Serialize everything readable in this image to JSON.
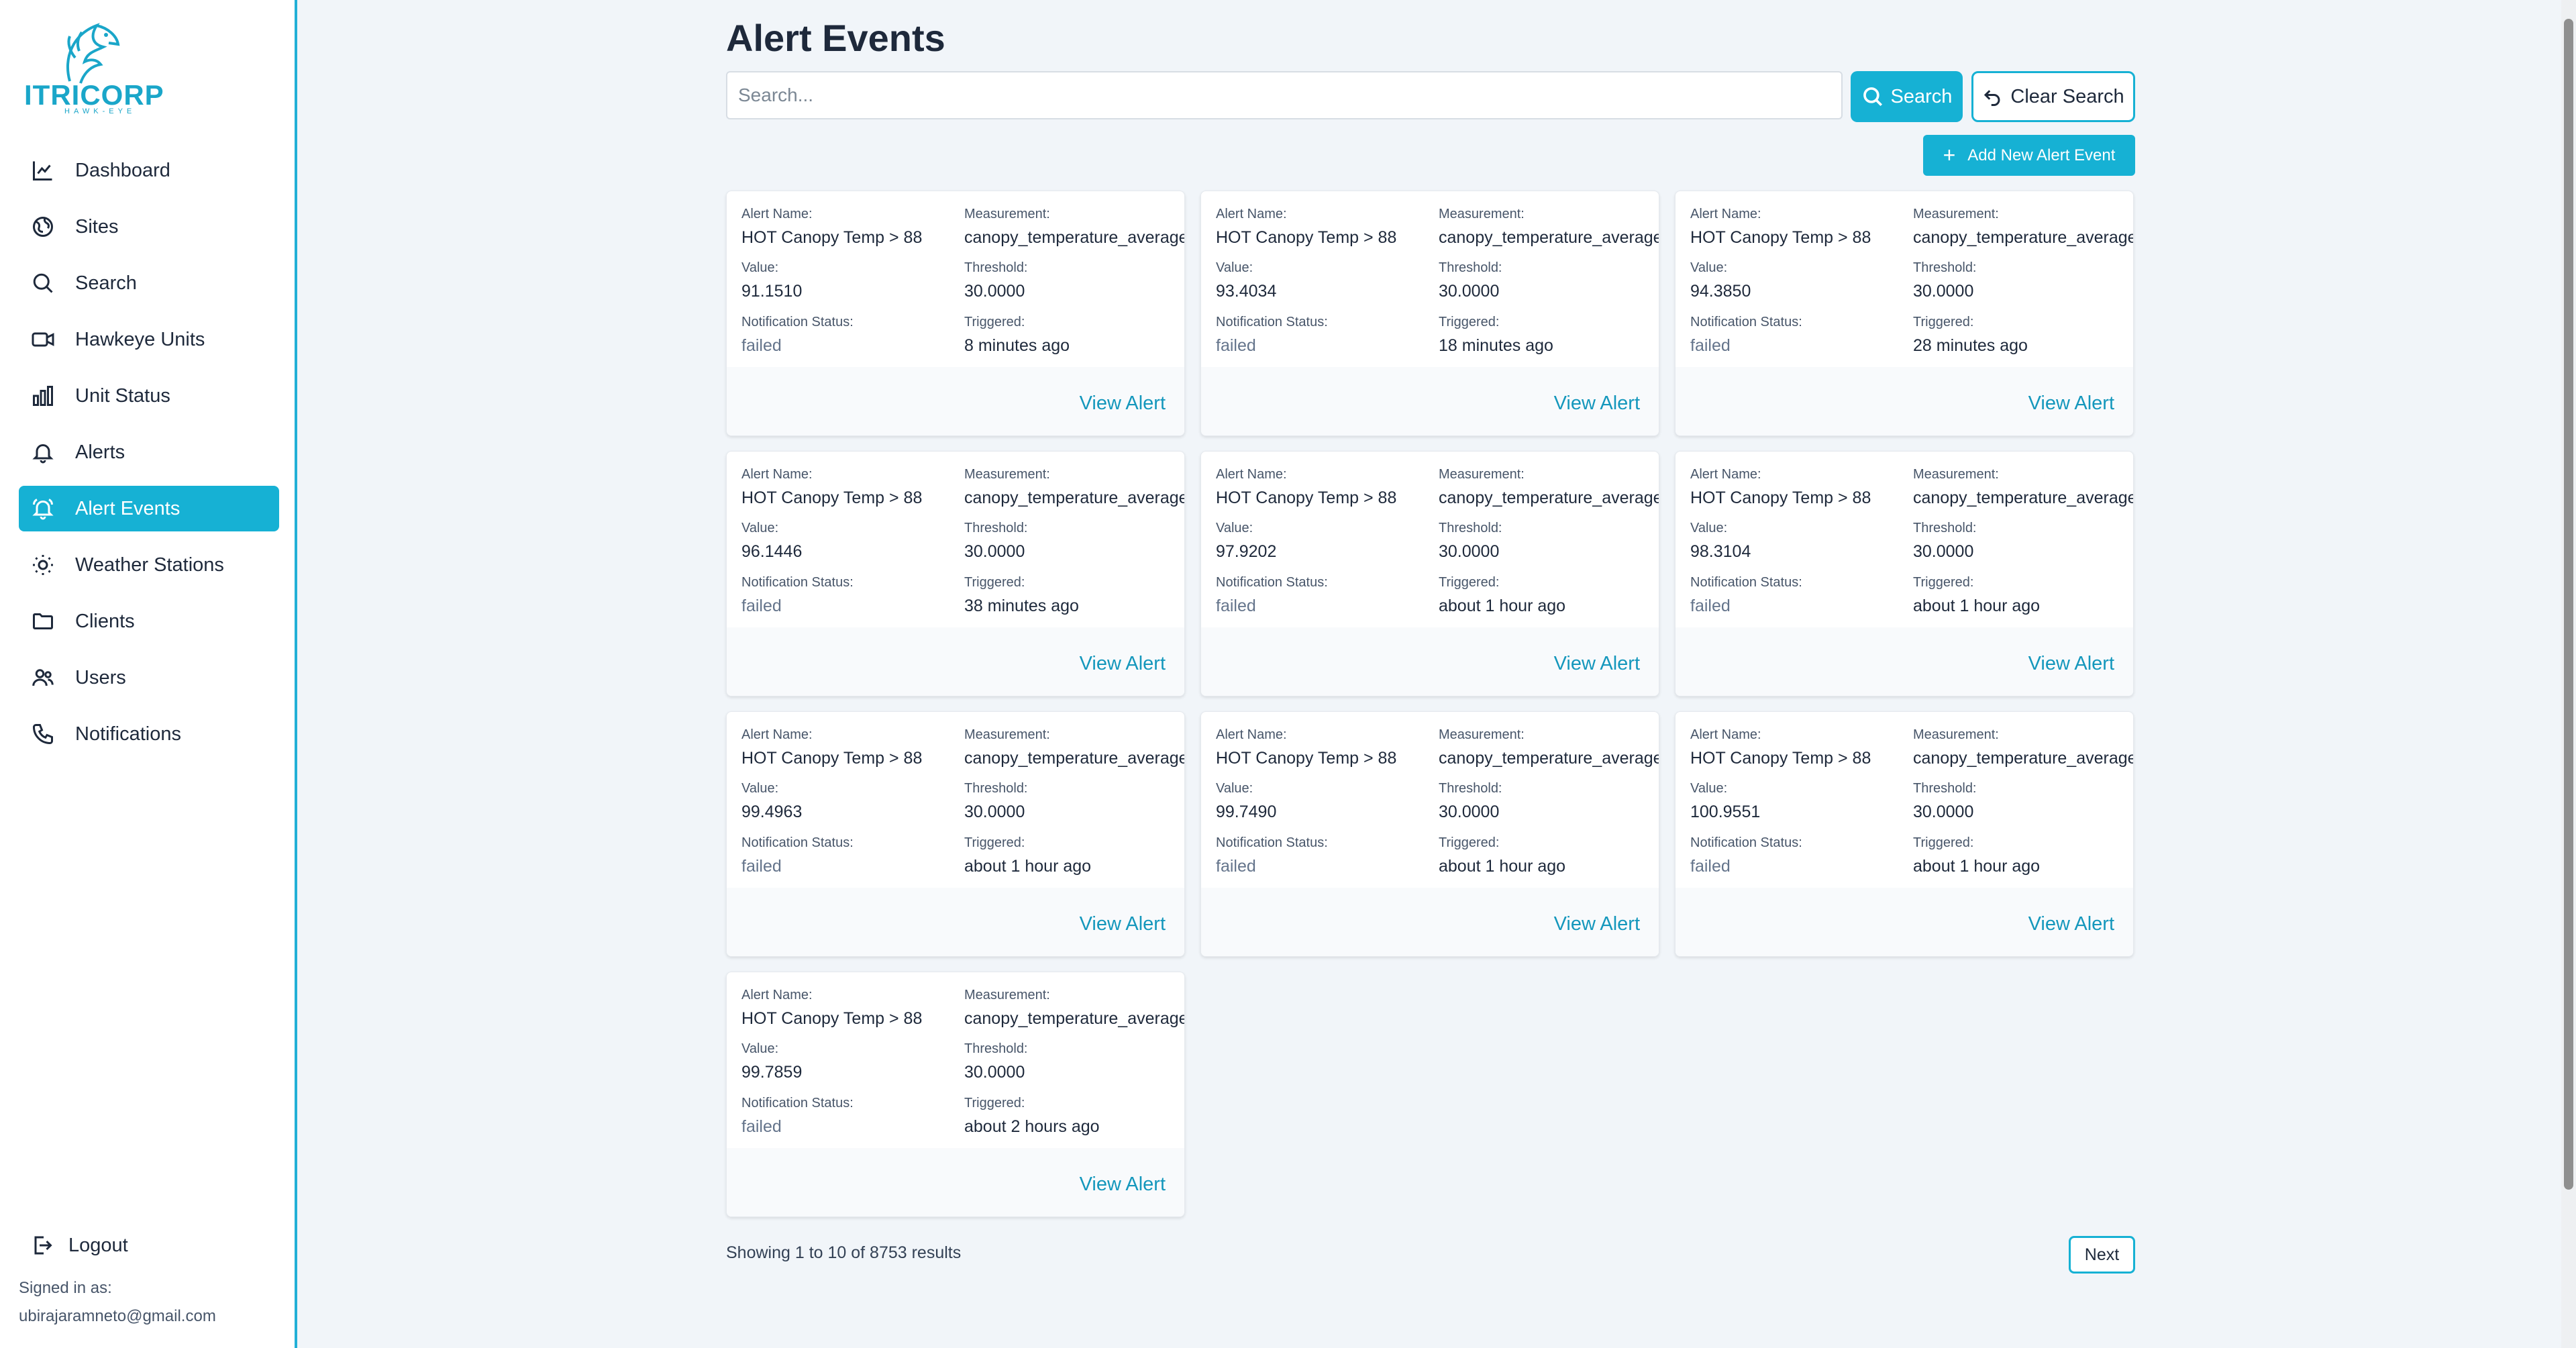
{
  "brand": {
    "name": "ITRICORP",
    "tagline": "HAWK-EYE",
    "accent_color": "#16b1d4"
  },
  "sidebar": {
    "items": [
      {
        "label": "Dashboard",
        "icon": "chart-line-icon",
        "active": false
      },
      {
        "label": "Sites",
        "icon": "globe-icon",
        "active": false
      },
      {
        "label": "Search",
        "icon": "search-icon",
        "active": false
      },
      {
        "label": "Hawkeye Units",
        "icon": "video-camera-icon",
        "active": false
      },
      {
        "label": "Unit Status",
        "icon": "bar-chart-icon",
        "active": false
      },
      {
        "label": "Alerts",
        "icon": "bell-icon",
        "active": false
      },
      {
        "label": "Alert Events",
        "icon": "bell-ring-icon",
        "active": true
      },
      {
        "label": "Weather Stations",
        "icon": "sun-icon",
        "active": false
      },
      {
        "label": "Clients",
        "icon": "folder-icon",
        "active": false
      },
      {
        "label": "Users",
        "icon": "users-icon",
        "active": false
      },
      {
        "label": "Notifications",
        "icon": "phone-icon",
        "active": false
      }
    ],
    "logout_label": "Logout",
    "signed_in_label": "Signed in as:",
    "signed_in_email": "ubirajaramneto@gmail.com"
  },
  "main": {
    "title": "Alert Events",
    "search": {
      "placeholder": "Search...",
      "value": ""
    },
    "search_button": "Search",
    "clear_button": "Clear Search",
    "add_button": "Add New Alert Event",
    "labels": {
      "alert_name": "Alert Name:",
      "measurement": "Measurement:",
      "value": "Value:",
      "threshold": "Threshold:",
      "notification_status": "Notification Status:",
      "triggered": "Triggered:",
      "view": "View Alert"
    },
    "events": [
      {
        "alert_name": "HOT Canopy Temp > 88",
        "measurement": "canopy_temperature_average",
        "value": "91.1510",
        "threshold": "30.0000",
        "status": "failed",
        "triggered": "8 minutes ago"
      },
      {
        "alert_name": "HOT Canopy Temp > 88",
        "measurement": "canopy_temperature_average",
        "value": "93.4034",
        "threshold": "30.0000",
        "status": "failed",
        "triggered": "18 minutes ago"
      },
      {
        "alert_name": "HOT Canopy Temp > 88",
        "measurement": "canopy_temperature_average",
        "value": "94.3850",
        "threshold": "30.0000",
        "status": "failed",
        "triggered": "28 minutes ago"
      },
      {
        "alert_name": "HOT Canopy Temp > 88",
        "measurement": "canopy_temperature_average",
        "value": "96.1446",
        "threshold": "30.0000",
        "status": "failed",
        "triggered": "38 minutes ago"
      },
      {
        "alert_name": "HOT Canopy Temp > 88",
        "measurement": "canopy_temperature_average",
        "value": "97.9202",
        "threshold": "30.0000",
        "status": "failed",
        "triggered": "about 1 hour ago"
      },
      {
        "alert_name": "HOT Canopy Temp > 88",
        "measurement": "canopy_temperature_average",
        "value": "98.3104",
        "threshold": "30.0000",
        "status": "failed",
        "triggered": "about 1 hour ago"
      },
      {
        "alert_name": "HOT Canopy Temp > 88",
        "measurement": "canopy_temperature_average",
        "value": "99.4963",
        "threshold": "30.0000",
        "status": "failed",
        "triggered": "about 1 hour ago"
      },
      {
        "alert_name": "HOT Canopy Temp > 88",
        "measurement": "canopy_temperature_average",
        "value": "99.7490",
        "threshold": "30.0000",
        "status": "failed",
        "triggered": "about 1 hour ago"
      },
      {
        "alert_name": "HOT Canopy Temp > 88",
        "measurement": "canopy_temperature_average",
        "value": "100.9551",
        "threshold": "30.0000",
        "status": "failed",
        "triggered": "about 1 hour ago"
      },
      {
        "alert_name": "HOT Canopy Temp > 88",
        "measurement": "canopy_temperature_average",
        "value": "99.7859",
        "threshold": "30.0000",
        "status": "failed",
        "triggered": "about 2 hours ago"
      }
    ],
    "pagination": {
      "summary": "Showing 1 to 10 of 8753 results",
      "next_label": "Next"
    }
  }
}
